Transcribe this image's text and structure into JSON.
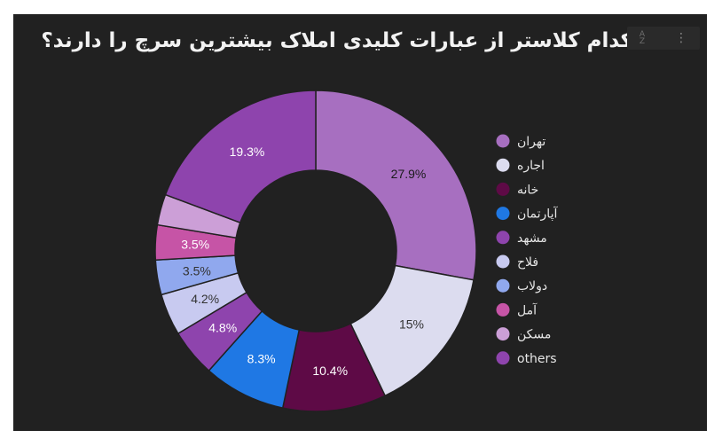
{
  "chart_data": {
    "type": "pie",
    "donut": true,
    "title": "کدام کلاستر از عبارات کلیدی املاک بیشترین سرچ را دارند؟",
    "legend_position": "right",
    "slices": [
      {
        "name": "تهران",
        "value": 27.9,
        "label": "27.9%",
        "color": "#a76fc0",
        "label_color": "#1a1a1a"
      },
      {
        "name": "اجاره",
        "value": 15.0,
        "label": "15%",
        "color": "#dcdcef",
        "label_color": "#333333"
      },
      {
        "name": "خانه",
        "value": 10.4,
        "label": "10.4%",
        "color": "#5e0a46",
        "label_color": "#ffffff"
      },
      {
        "name": "آپارتمان",
        "value": 8.3,
        "label": "8.3%",
        "color": "#1f78e4",
        "label_color": "#ffffff"
      },
      {
        "name": "مشهد",
        "value": 4.8,
        "label": "4.8%",
        "color": "#8e44ad",
        "label_color": "#ffffff"
      },
      {
        "name": "فلاح",
        "value": 4.2,
        "label": "4.2%",
        "color": "#c8caf0",
        "label_color": "#333333"
      },
      {
        "name": "دولاب",
        "value": 3.5,
        "label": "3.5%",
        "color": "#90a8ee",
        "label_color": "#333333"
      },
      {
        "name": "آمل",
        "value": 3.5,
        "label": "3.5%",
        "color": "#c654a6",
        "label_color": "#ffffff"
      },
      {
        "name": "مسکن",
        "value": 3.1,
        "label": "",
        "color": "#cc9fd7",
        "label_color": "#333333"
      },
      {
        "name": "others",
        "value": 19.3,
        "label": "19.3%",
        "color": "#8e44ad",
        "label_color": "#ffffff"
      }
    ]
  },
  "toolbar": {
    "sort_icon": "sort-icon",
    "more_icon": "more-vert-icon"
  },
  "colors": {
    "background": "#212121",
    "title": "#f2f2f2",
    "legend_text": "#e6e6e6"
  }
}
